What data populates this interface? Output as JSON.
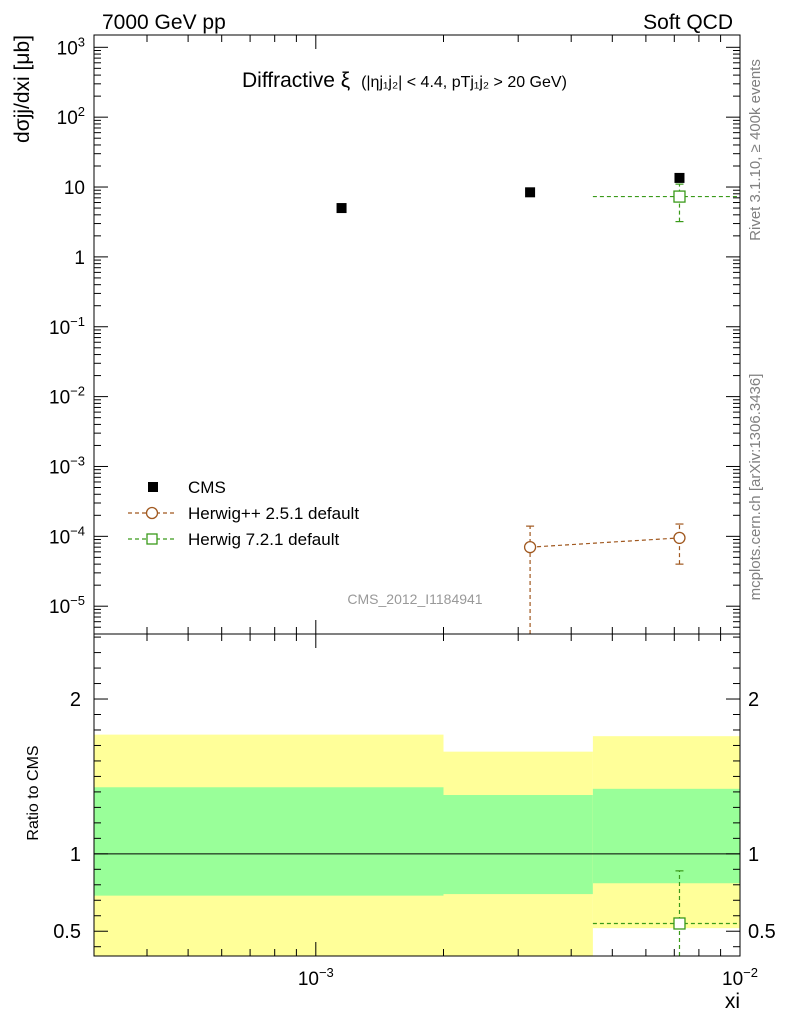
{
  "header": {
    "left": "7000 GeV pp",
    "right": "Soft QCD"
  },
  "side_labels": {
    "rivet": "Rivet 3.1.10, ≥ 400k events",
    "mcplots": "mcplots.cern.ch [arXiv:1306.3436]"
  },
  "chart_data": [
    {
      "type": "scatter",
      "title": "Diffractive ξ (|ηj1j2| < 4.4, pTj1j2 > 20 GeV)",
      "title_parts": {
        "main": "Diffractive ξ",
        "cond": "(|ηj₁j₂| < 4.4, pTj₁j₂ > 20 GeV)"
      },
      "ylabel": "dσjj/dxi [μb]",
      "xlabel": "xi",
      "xscale": "log",
      "yscale": "log",
      "xlim": [
        0.0003,
        0.01
      ],
      "ylim": [
        4e-06,
        1500
      ],
      "watermark": "CMS_2012_I1184941",
      "legend_position": "lower-left",
      "y_ticks": [
        {
          "value": 1000,
          "label": "10^3"
        },
        {
          "value": 100,
          "label": "10^2"
        },
        {
          "value": 10,
          "label": "10"
        },
        {
          "value": 1,
          "label": "1"
        },
        {
          "value": 0.1,
          "label": "10^-1"
        },
        {
          "value": 0.01,
          "label": "10^-2"
        },
        {
          "value": 0.001,
          "label": "10^-3"
        },
        {
          "value": 0.0001,
          "label": "10^-4"
        },
        {
          "value": 1e-05,
          "label": "10^-5"
        }
      ],
      "series": [
        {
          "name": "CMS",
          "style": "filled-square",
          "color": "#000000",
          "points": [
            {
              "x": 0.00115,
              "y": 5.0
            },
            {
              "x": 0.0032,
              "y": 8.4
            },
            {
              "x": 0.0072,
              "y": 13.5
            }
          ]
        },
        {
          "name": "Herwig++ 2.5.1 default",
          "style": "open-circle-dashed",
          "color": "#a0581f",
          "points": [
            {
              "x": 0.0032,
              "y": 7e-05,
              "ylo": 4e-06,
              "yhi": 0.00014
            },
            {
              "x": 0.0072,
              "y": 9.5e-05,
              "ylo": 4e-05,
              "yhi": 0.00015
            }
          ]
        },
        {
          "name": "Herwig 7.2.1 default",
          "style": "open-square-dashed",
          "color": "#3a9a1a",
          "points": [
            {
              "x": 0.0072,
              "y": 7.3,
              "ylo": 3.2,
              "yhi": 11.0,
              "xlo": 0.0045,
              "xhi": 0.01
            }
          ]
        }
      ]
    },
    {
      "type": "area",
      "ylabel": "Ratio to CMS",
      "xlabel": "xi",
      "xscale": "log",
      "xlim": [
        0.0003,
        0.01
      ],
      "ylim": [
        0.34,
        2.42
      ],
      "y_ticks": [
        {
          "value": 2,
          "label": "2"
        },
        {
          "value": 1,
          "label": "1"
        },
        {
          "value": 0.5,
          "label": "0.5"
        }
      ],
      "x_ticks": [
        {
          "value": 0.001,
          "label": "10^-3"
        },
        {
          "value": 0.01,
          "label": "10^-2"
        }
      ],
      "reference_line": 1,
      "bands": [
        {
          "xlo": 0.0003,
          "xhi": 0.002,
          "outer": [
            0.34,
            1.77
          ],
          "inner": [
            0.73,
            1.43
          ]
        },
        {
          "xlo": 0.002,
          "xhi": 0.0045,
          "outer": [
            0.34,
            1.66
          ],
          "inner": [
            0.74,
            1.38
          ]
        },
        {
          "xlo": 0.0045,
          "xhi": 0.01,
          "outer": [
            0.52,
            1.76
          ],
          "inner": [
            0.81,
            1.42
          ]
        }
      ],
      "band_colors": {
        "outer": "#ffff99",
        "inner": "#99ff99"
      },
      "series": [
        {
          "name": "Herwig 7.2.1 default",
          "color": "#3a9a1a",
          "points": [
            {
              "x": 0.0072,
              "y": 0.55,
              "ylo": 0.34,
              "yhi": 0.89,
              "xlo": 0.0045,
              "xhi": 0.01
            }
          ]
        }
      ]
    }
  ]
}
